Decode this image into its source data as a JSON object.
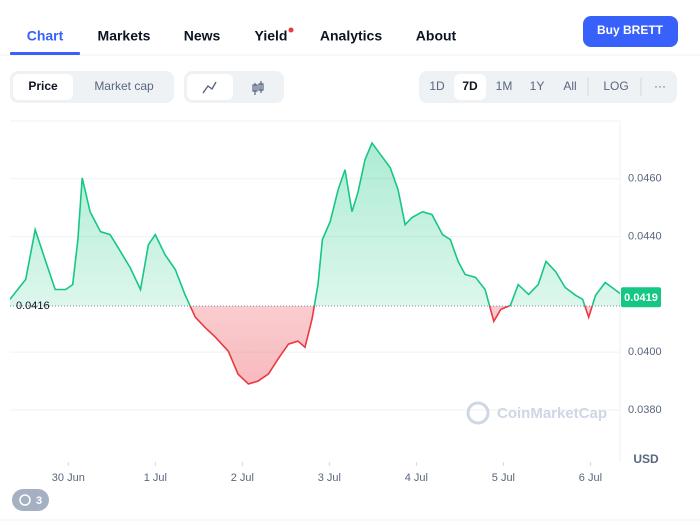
{
  "ui": {
    "tabs": [
      "Chart",
      "Markets",
      "News",
      "Yield",
      "Analytics",
      "About"
    ],
    "buy_button": "Buy BRETT",
    "toggles": [
      "Price",
      "Market cap"
    ],
    "ranges": [
      "1D",
      "7D",
      "1M",
      "1Y",
      "All",
      "LOG",
      "···"
    ],
    "watermark": "CoinMarketCap",
    "currency": "USD",
    "history_badge": "3"
  },
  "chart_data": {
    "type": "line",
    "x": [
      -0.67,
      -0.49,
      -0.38,
      -0.26,
      -0.15,
      -0.03,
      0.05,
      0.11,
      0.16,
      0.25,
      0.37,
      0.48,
      0.6,
      0.71,
      0.83,
      0.92,
      1.0,
      1.11,
      1.23,
      1.34,
      1.46,
      1.57,
      1.69,
      1.84,
      1.95,
      2.07,
      2.18,
      2.3,
      2.41,
      2.53,
      2.64,
      2.72,
      2.8,
      2.87,
      2.92,
      3.01,
      3.1,
      3.18,
      3.26,
      3.33,
      3.41,
      3.49,
      3.59,
      3.7,
      3.79,
      3.87,
      3.95,
      4.07,
      4.18,
      4.3,
      4.39,
      4.48,
      4.56,
      4.68,
      4.79,
      4.89,
      4.97,
      5.08,
      5.17,
      5.29,
      5.4,
      5.49,
      5.6,
      5.71,
      5.83,
      5.91,
      5.98,
      6.06,
      6.17,
      6.28,
      6.34
    ],
    "values": [
      0.04183,
      0.04252,
      0.04424,
      0.04314,
      0.04217,
      0.04217,
      0.04234,
      0.0439,
      0.04603,
      0.04486,
      0.04417,
      0.04407,
      0.04348,
      0.04293,
      0.04217,
      0.04372,
      0.04407,
      0.04338,
      0.04286,
      0.042,
      0.04121,
      0.04086,
      0.04052,
      0.04003,
      0.03924,
      0.0389,
      0.039,
      0.03924,
      0.03976,
      0.04028,
      0.04038,
      0.04017,
      0.04114,
      0.04234,
      0.0439,
      0.04452,
      0.04562,
      0.04631,
      0.04486,
      0.04555,
      0.04666,
      0.04724,
      0.04683,
      0.04638,
      0.04562,
      0.04441,
      0.04466,
      0.04486,
      0.04476,
      0.04407,
      0.0439,
      0.04314,
      0.04269,
      0.04259,
      0.04217,
      0.04107,
      0.04148,
      0.04162,
      0.04234,
      0.042,
      0.04234,
      0.04314,
      0.04279,
      0.04224,
      0.04197,
      0.04183,
      0.04121,
      0.04197,
      0.04241,
      0.04217,
      0.04203
    ],
    "baseline": 0.0416,
    "current_price": 0.0419,
    "up_color": "#16c784",
    "down_color": "#ea3943",
    "xlim": [
      -0.67,
      6.34
    ],
    "ylim": [
      0.0362,
      0.048
    ],
    "xticks": [
      {
        "value": 0,
        "label": "30 Jun"
      },
      {
        "value": 1,
        "label": "1 Jul"
      },
      {
        "value": 2,
        "label": "2 Jul"
      },
      {
        "value": 3,
        "label": "3 Jul"
      },
      {
        "value": 4,
        "label": "4 Jul"
      },
      {
        "value": 5,
        "label": "5 Jul"
      },
      {
        "value": 6,
        "label": "6 Jul"
      }
    ],
    "yticks": [
      {
        "value": 0.038,
        "label": "0.0380"
      },
      {
        "value": 0.04,
        "label": "0.0400"
      },
      {
        "value": 0.044,
        "label": "0.0440"
      },
      {
        "value": 0.046,
        "label": "0.0460"
      }
    ],
    "grid": true
  }
}
